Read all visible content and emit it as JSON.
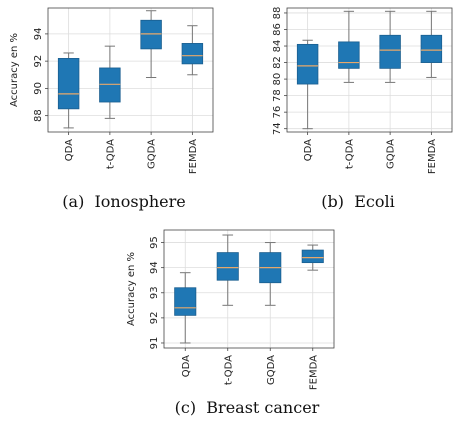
{
  "colors": {
    "box_fill": "#1f77b4",
    "median": "#e8a86a",
    "whisker": "#777777",
    "grid": "#dddddd",
    "spine": "#444444"
  },
  "chart_data": [
    {
      "type": "boxplot",
      "caption": "(a)  Ionosphere",
      "ylabel": "Accuracy en %",
      "categories": [
        "QDA",
        "t-QDA",
        "GQDA",
        "FEMDA"
      ],
      "yticks": [
        88,
        90,
        92,
        94
      ],
      "ylim": [
        86.8,
        95.9
      ],
      "grid": true,
      "boxes": [
        {
          "whislo": 87.1,
          "q1": 88.5,
          "med": 89.6,
          "q3": 92.2,
          "whishi": 92.6
        },
        {
          "whislo": 87.8,
          "q1": 89.0,
          "med": 90.3,
          "q3": 91.5,
          "whishi": 93.1
        },
        {
          "whislo": 90.8,
          "q1": 92.9,
          "med": 94.0,
          "q3": 95.0,
          "whishi": 95.7
        },
        {
          "whislo": 91.0,
          "q1": 91.8,
          "med": 92.4,
          "q3": 93.3,
          "whishi": 94.6
        }
      ]
    },
    {
      "type": "boxplot",
      "caption": "(b)  Ecoli",
      "ylabel": "",
      "categories": [
        "QDA",
        "t-QDA",
        "GQDA",
        "FEMDA"
      ],
      "yticks": [
        74,
        76,
        78,
        80,
        82,
        84,
        86,
        88
      ],
      "ylim": [
        73.6,
        88.6
      ],
      "grid": true,
      "boxes": [
        {
          "whislo": 74.0,
          "q1": 79.4,
          "med": 81.6,
          "q3": 84.2,
          "whishi": 84.7
        },
        {
          "whislo": 79.6,
          "q1": 81.3,
          "med": 82.0,
          "q3": 84.5,
          "whishi": 88.2
        },
        {
          "whislo": 79.6,
          "q1": 81.3,
          "med": 83.5,
          "q3": 85.3,
          "whishi": 88.2
        },
        {
          "whislo": 80.2,
          "q1": 82.0,
          "med": 83.5,
          "q3": 85.3,
          "whishi": 88.2
        }
      ]
    },
    {
      "type": "boxplot",
      "caption": "(c)  Breast cancer",
      "ylabel": "Accuracy en %",
      "categories": [
        "QDA",
        "t-QDA",
        "GQDA",
        "FEMDA"
      ],
      "yticks": [
        91,
        92,
        93,
        94,
        95
      ],
      "ylim": [
        90.8,
        95.5
      ],
      "grid": true,
      "boxes": [
        {
          "whislo": 91.0,
          "q1": 92.1,
          "med": 92.4,
          "q3": 93.2,
          "whishi": 93.8
        },
        {
          "whislo": 92.5,
          "q1": 93.5,
          "med": 94.0,
          "q3": 94.6,
          "whishi": 95.3
        },
        {
          "whislo": 92.5,
          "q1": 93.4,
          "med": 94.0,
          "q3": 94.6,
          "whishi": 95.0
        },
        {
          "whislo": 93.9,
          "q1": 94.2,
          "med": 94.4,
          "q3": 94.7,
          "whishi": 94.9
        }
      ]
    }
  ]
}
